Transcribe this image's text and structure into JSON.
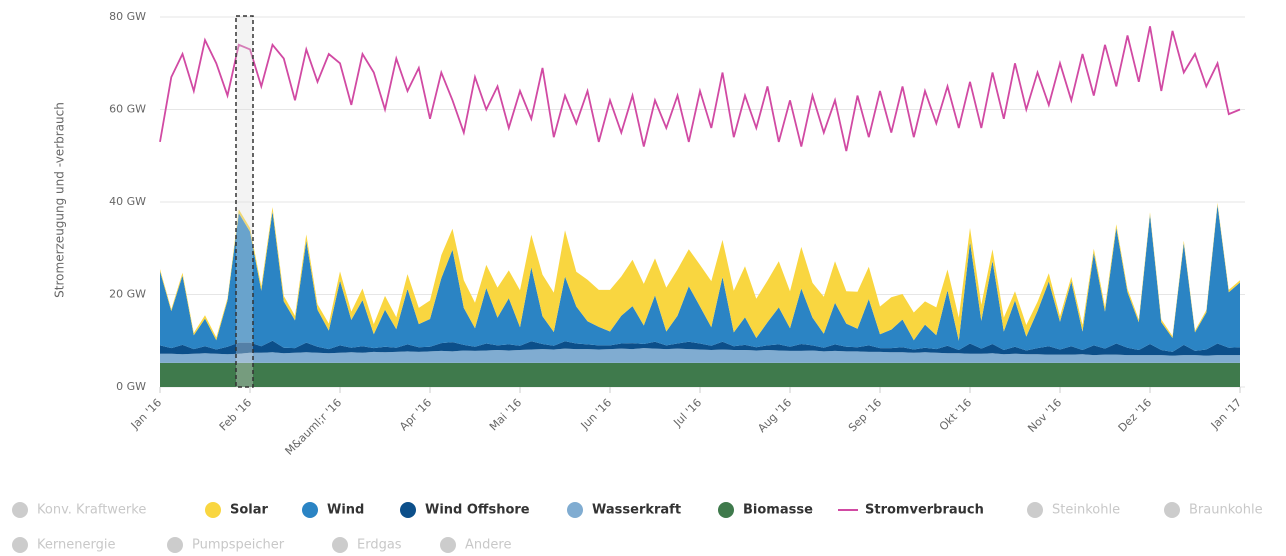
{
  "chart_data": {
    "type": "stacked-area-line",
    "y_axis_label": "Stromerzeugung und -verbrauch",
    "ylim": [
      0,
      80
    ],
    "yticks": [
      {
        "value": 0,
        "label": "0 GW"
      },
      {
        "value": 20,
        "label": "20 GW"
      },
      {
        "value": 40,
        "label": "40 GW"
      },
      {
        "value": 60,
        "label": "60 GW"
      },
      {
        "value": 80,
        "label": "80 GW"
      }
    ],
    "grid": true,
    "categories": [
      "Jan '16",
      null,
      null,
      null,
      null,
      null,
      null,
      null,
      "Feb '16",
      null,
      null,
      null,
      null,
      null,
      null,
      null,
      "M&auml;r '16",
      null,
      null,
      null,
      null,
      null,
      null,
      null,
      "Apr '16",
      null,
      null,
      null,
      null,
      null,
      null,
      null,
      "Mai '16",
      null,
      null,
      null,
      null,
      null,
      null,
      null,
      "Jun '16",
      null,
      null,
      null,
      null,
      null,
      null,
      null,
      "Jul '16",
      null,
      null,
      null,
      null,
      null,
      null,
      null,
      "Aug '16",
      null,
      null,
      null,
      null,
      null,
      null,
      null,
      "Sep '16",
      null,
      null,
      null,
      null,
      null,
      null,
      null,
      "Okt '16",
      null,
      null,
      null,
      null,
      null,
      null,
      null,
      "Nov '16",
      null,
      null,
      null,
      null,
      null,
      null,
      null,
      "Dez '16",
      null,
      null,
      null,
      null,
      null,
      null,
      null,
      "Jan '17"
    ],
    "series": [
      {
        "name": "Konv. Kraftwerke",
        "color": "#cccccc",
        "visible": false
      },
      {
        "name": "Solar",
        "color": "#f9d640",
        "visible": true,
        "kind": "area",
        "values": [
          0.5,
          0.4,
          0.6,
          0.5,
          0.7,
          0.6,
          0.5,
          0.8,
          0.8,
          1,
          0.9,
          1.2,
          1,
          1.4,
          1.2,
          1.5,
          2,
          1.8,
          2.5,
          2.2,
          3,
          2.6,
          3.2,
          3.5,
          4,
          5,
          4.5,
          6,
          5.5,
          5,
          6.5,
          6,
          8,
          7,
          9,
          8.5,
          10,
          7.5,
          9,
          8,
          9,
          8.5,
          10,
          9,
          8,
          9.5,
          10,
          8,
          9,
          10,
          8,
          9,
          11,
          8.5,
          9,
          10,
          8,
          9,
          7.5,
          8,
          9,
          7,
          8,
          7,
          6,
          7,
          5.5,
          6,
          5,
          6,
          4.5,
          5,
          3,
          3.5,
          2.5,
          3,
          2,
          2.5,
          2,
          1.8,
          1.2,
          1,
          1.4,
          0.9,
          1,
          0.8,
          0.7,
          0.6,
          0.5,
          0.6,
          0.4,
          0.5,
          0.4,
          0.5,
          0.4,
          0.5,
          0.5
        ]
      },
      {
        "name": "Wind",
        "color": "#2b84c4",
        "visible": true,
        "kind": "area",
        "values": [
          16,
          8,
          15,
          3,
          6,
          2,
          10,
          28,
          24,
          12,
          28,
          10,
          6,
          22,
          8,
          4,
          14,
          6,
          10,
          3,
          8,
          4,
          12,
          5,
          6,
          14,
          20,
          8,
          4,
          12,
          6,
          10,
          4,
          16,
          6,
          3,
          14,
          8,
          5,
          4,
          3,
          6,
          8,
          4,
          10,
          3,
          6,
          12,
          8,
          4,
          14,
          3,
          6,
          2,
          5,
          8,
          4,
          12,
          6,
          3,
          9,
          5,
          4,
          10,
          3,
          4,
          6,
          2,
          5,
          3,
          12,
          2,
          22,
          6,
          18,
          4,
          10,
          3,
          8,
          14,
          6,
          14,
          4,
          20,
          8,
          25,
          12,
          6,
          28,
          6,
          3,
          22,
          4,
          8,
          30,
          12,
          14
        ]
      },
      {
        "name": "Wind Offshore",
        "color": "#0c4f8a",
        "visible": true,
        "kind": "area",
        "values": [
          1.8,
          1.2,
          2,
          1,
          1.5,
          0.9,
          1.6,
          2.4,
          2.2,
          1.4,
          2.5,
          1.2,
          1,
          2.1,
          1.3,
          0.9,
          1.6,
          1,
          1.4,
          0.8,
          1.2,
          0.9,
          1.5,
          1,
          1,
          1.7,
          2,
          1.2,
          0.9,
          1.5,
          1,
          1.3,
          0.9,
          1.8,
          1.1,
          0.8,
          1.6,
          1.2,
          1,
          0.9,
          0.8,
          1.1,
          1.3,
          0.9,
          1.5,
          0.8,
          1.1,
          1.6,
          1.3,
          0.9,
          1.7,
          0.8,
          1.1,
          0.7,
          1,
          1.3,
          0.9,
          1.5,
          1.1,
          0.8,
          1.4,
          1,
          0.9,
          1.4,
          0.8,
          0.9,
          1.1,
          0.7,
          1,
          0.8,
          1.6,
          0.7,
          2.2,
          1.1,
          2,
          0.9,
          1.5,
          0.8,
          1.3,
          1.8,
          1.1,
          1.8,
          0.9,
          2.1,
          1.3,
          2.4,
          1.6,
          1.1,
          2.4,
          1.1,
          0.8,
          2.2,
          0.9,
          1.3,
          2.5,
          1.6,
          1.7
        ]
      },
      {
        "name": "Wasserkraft",
        "color": "#80acd1",
        "visible": true,
        "kind": "area",
        "values": [
          2,
          2,
          1.9,
          2,
          2.1,
          2,
          1.9,
          2,
          2.2,
          2.2,
          2.3,
          2.1,
          2.2,
          2.3,
          2.2,
          2.1,
          2.2,
          2.3,
          2.2,
          2.4,
          2.3,
          2.4,
          2.5,
          2.4,
          2.5,
          2.6,
          2.5,
          2.7,
          2.6,
          2.7,
          2.8,
          2.7,
          2.8,
          2.9,
          3,
          2.9,
          3.1,
          3,
          3,
          2.9,
          3,
          3.1,
          3,
          3.2,
          3.1,
          3,
          3.1,
          3,
          2.9,
          2.8,
          2.9,
          2.8,
          2.8,
          2.7,
          2.8,
          2.7,
          2.6,
          2.6,
          2.7,
          2.5,
          2.6,
          2.5,
          2.5,
          2.4,
          2.4,
          2.3,
          2.3,
          2.2,
          2.3,
          2.2,
          2.1,
          2.1,
          2,
          2,
          2.1,
          1.9,
          2,
          1.9,
          1.9,
          1.8,
          1.8,
          1.8,
          1.9,
          1.7,
          1.8,
          1.8,
          1.7,
          1.7,
          1.7,
          1.7,
          1.6,
          1.7,
          1.7,
          1.6,
          1.7,
          1.7,
          1.7
        ]
      },
      {
        "name": "Biomasse",
        "color": "#3f7a4c",
        "visible": true,
        "kind": "area",
        "values": [
          5.2,
          5.2,
          5.2,
          5.2,
          5.2,
          5.2,
          5.2,
          5.2,
          5.2,
          5.2,
          5.2,
          5.2,
          5.2,
          5.2,
          5.2,
          5.2,
          5.2,
          5.2,
          5.2,
          5.2,
          5.2,
          5.2,
          5.2,
          5.2,
          5.2,
          5.2,
          5.2,
          5.2,
          5.2,
          5.2,
          5.2,
          5.2,
          5.2,
          5.2,
          5.2,
          5.2,
          5.2,
          5.2,
          5.2,
          5.2,
          5.2,
          5.2,
          5.2,
          5.2,
          5.2,
          5.2,
          5.2,
          5.2,
          5.2,
          5.2,
          5.2,
          5.2,
          5.2,
          5.2,
          5.2,
          5.2,
          5.2,
          5.2,
          5.2,
          5.2,
          5.2,
          5.2,
          5.2,
          5.2,
          5.2,
          5.2,
          5.2,
          5.2,
          5.2,
          5.2,
          5.2,
          5.2,
          5.2,
          5.2,
          5.2,
          5.2,
          5.2,
          5.2,
          5.2,
          5.2,
          5.2,
          5.2,
          5.2,
          5.2,
          5.2,
          5.2,
          5.2,
          5.2,
          5.2,
          5.2,
          5.2,
          5.2,
          5.2,
          5.2,
          5.2,
          5.2,
          5.2
        ]
      },
      {
        "name": "Stromverbrauch",
        "color": "#d14aa3",
        "visible": true,
        "kind": "line",
        "values": [
          53,
          67,
          72,
          64,
          75,
          70,
          63,
          74,
          73,
          65,
          74,
          71,
          62,
          73,
          66,
          72,
          70,
          61,
          72,
          68,
          60,
          71,
          64,
          69,
          58,
          68,
          62,
          55,
          67,
          60,
          65,
          56,
          64,
          58,
          69,
          54,
          63,
          57,
          64,
          53,
          62,
          55,
          63,
          52,
          62,
          56,
          63,
          53,
          64,
          56,
          68,
          54,
          63,
          56,
          65,
          53,
          62,
          52,
          63,
          55,
          62,
          51,
          63,
          54,
          64,
          55,
          65,
          54,
          64,
          57,
          65,
          56,
          66,
          56,
          68,
          58,
          70,
          60,
          68,
          61,
          70,
          62,
          72,
          63,
          74,
          65,
          76,
          66,
          78,
          64,
          77,
          68,
          72,
          65,
          70,
          59,
          60
        ]
      },
      {
        "name": "Steinkohle",
        "color": "#cccccc",
        "visible": false
      },
      {
        "name": "Braunkohle",
        "color": "#cccccc",
        "visible": false
      },
      {
        "name": "Kernenergie",
        "color": "#cccccc",
        "visible": false
      },
      {
        "name": "Pumpspeicher",
        "color": "#cccccc",
        "visible": false
      },
      {
        "name": "Erdgas",
        "color": "#cccccc",
        "visible": false
      },
      {
        "name": "Andere",
        "color": "#cccccc",
        "visible": false
      }
    ]
  }
}
